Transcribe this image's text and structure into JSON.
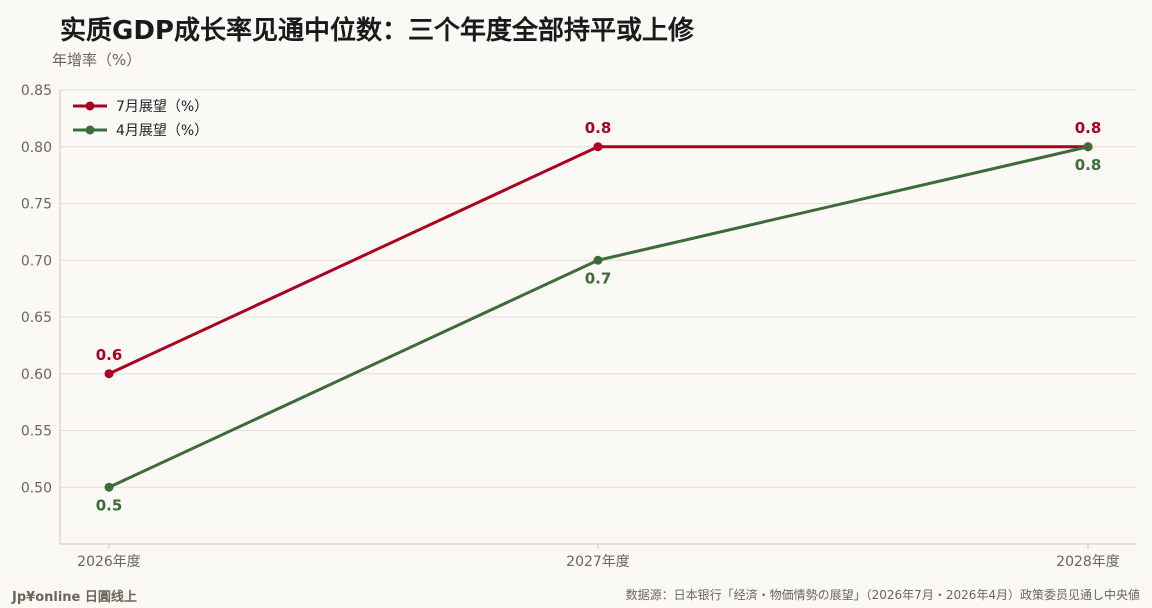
{
  "header": {
    "title": "实质GDP成长率见通中位数：三个年度全部持平或上修"
  },
  "chart_data": {
    "type": "line",
    "title": "实质GDP成长率见通中位数：三个年度全部持平或上修",
    "xlabel": "",
    "ylabel": "年增率（%）",
    "categories": [
      "2026年度",
      "2027年度",
      "2028年度"
    ],
    "ylim": [
      0.45,
      0.85
    ],
    "yticks": [
      0.5,
      0.55,
      0.6,
      0.65,
      0.7,
      0.75,
      0.8,
      0.85
    ],
    "grid": true,
    "legend_position": "top-left",
    "series": [
      {
        "name": "7月展望（%）",
        "values": [
          0.6,
          0.8,
          0.8
        ],
        "color": "#a8001e",
        "label_side": "above"
      },
      {
        "name": "4月展望（%）",
        "values": [
          0.5,
          0.7,
          0.8
        ],
        "color": "#3d6b3a",
        "label_side": "below"
      }
    ]
  },
  "footer": {
    "brand": "Jp¥online 日圓线上",
    "source": "数据源：日本银行「经済・物価情勢の展望」（2026年7月・2026年4月）政策委员见通し中央値"
  }
}
